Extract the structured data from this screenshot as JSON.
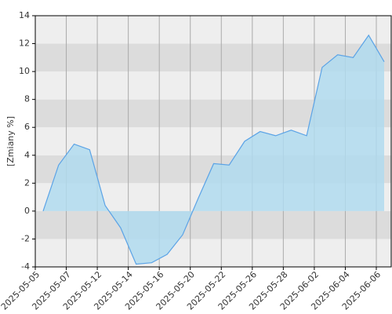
{
  "chart_data": {
    "type": "area",
    "y_label": "[Zmiany %]",
    "categories": [
      "2025-05-05",
      null,
      "2025-05-07",
      null,
      "2025-05-12",
      null,
      "2025-05-14",
      null,
      "2025-05-16",
      null,
      "2025-05-20",
      null,
      "2025-05-22",
      null,
      "2025-05-26",
      null,
      "2025-05-28",
      null,
      "2025-06-02",
      null,
      "2025-06-04",
      null,
      "2025-06-06"
    ],
    "values": [
      0,
      3.3,
      4.8,
      4.4,
      0.4,
      -1.2,
      -3.8,
      -3.7,
      -3.1,
      -1.7,
      0.9,
      3.4,
      3.3,
      5.0,
      5.7,
      5.4,
      5.8,
      5.4,
      10.3,
      11.2,
      11.0,
      12.6,
      10.7
    ],
    "color": "#5ba3e6",
    "fill": "#b0dbee",
    "ylim": [
      -4,
      14
    ],
    "yticks": [
      -4,
      -2,
      0,
      2,
      4,
      6,
      8,
      10,
      12,
      14
    ],
    "grid": true
  }
}
